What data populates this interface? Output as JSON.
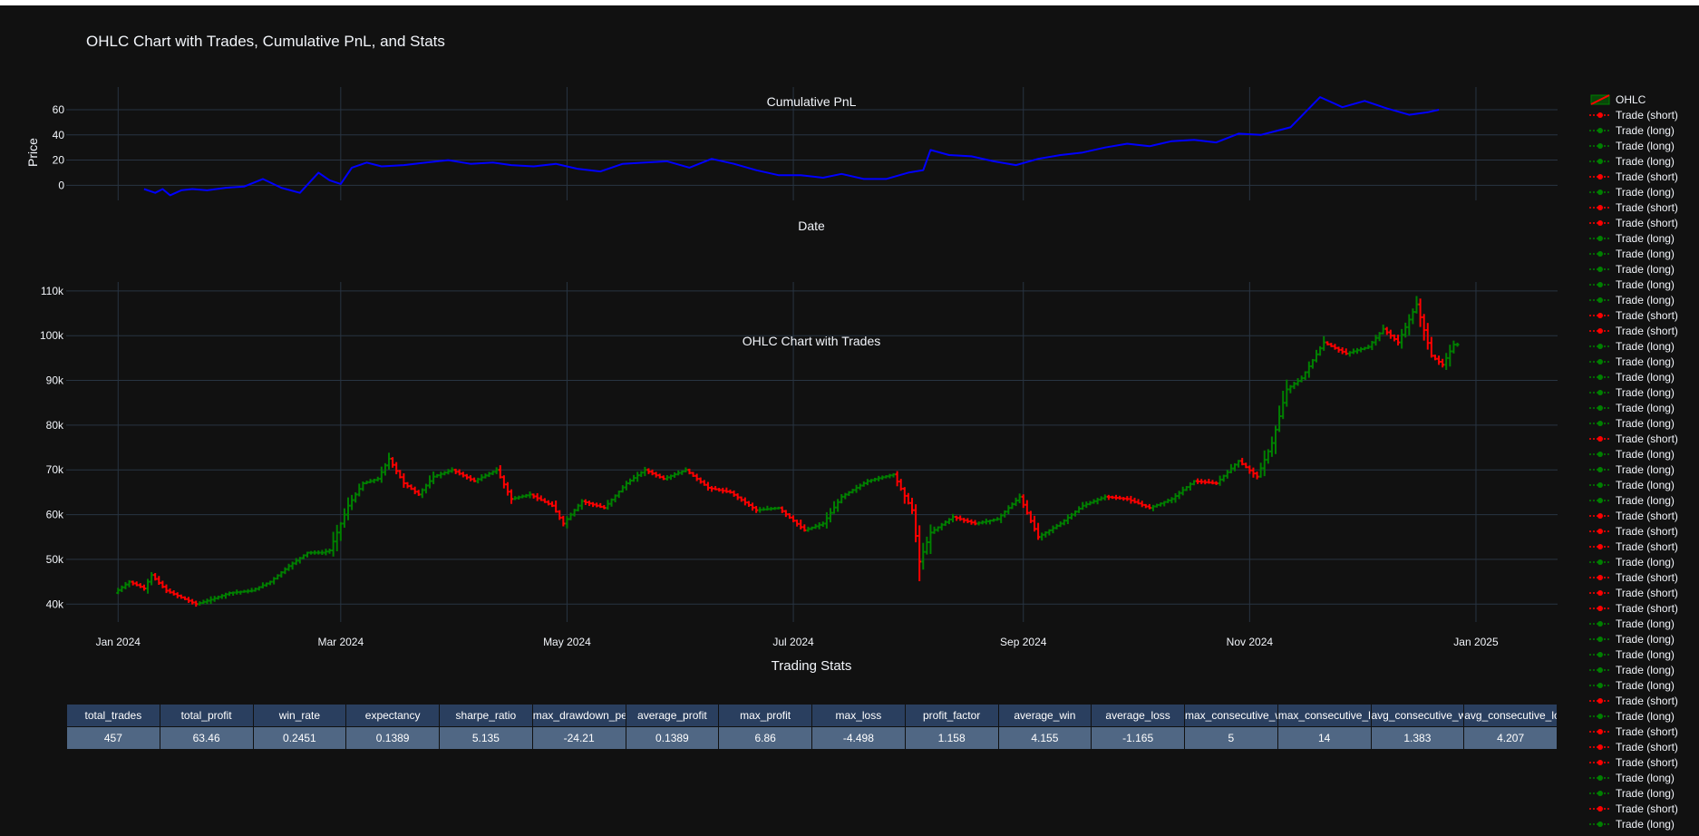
{
  "title": "OHLC Chart with Trades, Cumulative PnL, and Stats",
  "colors": {
    "background": "#111111",
    "grid": "#283442",
    "pnl_line": "#0000ff",
    "increasing": "#008000",
    "decreasing": "#ff0000",
    "header_fill": "#2a3f5f",
    "cell_fill": "#506784",
    "text": "#f2f5fa"
  },
  "chart_data": [
    {
      "type": "line",
      "title": "Cumulative PnL",
      "xlabel": "Date",
      "ylabel": "Price",
      "ylim": [
        -12,
        78
      ],
      "yticks": [
        0,
        20,
        40,
        60
      ],
      "ytick_labels": [
        "0",
        "20",
        "40",
        "60"
      ],
      "grid": true,
      "series": [
        {
          "x": [
            "2024-01-08",
            "2024-01-11",
            "2024-01-13",
            "2024-01-15",
            "2024-01-18",
            "2024-01-21",
            "2024-01-25",
            "2024-01-30",
            "2024-02-04",
            "2024-02-09",
            "2024-02-14",
            "2024-02-19",
            "2024-02-24",
            "2024-02-27",
            "2024-03-01",
            "2024-03-04",
            "2024-03-08",
            "2024-03-12",
            "2024-03-18",
            "2024-03-24",
            "2024-03-30",
            "2024-04-05",
            "2024-04-11",
            "2024-04-16",
            "2024-04-22",
            "2024-04-28",
            "2024-05-04",
            "2024-05-10",
            "2024-05-16",
            "2024-05-22",
            "2024-05-28",
            "2024-06-03",
            "2024-06-09",
            "2024-06-15",
            "2024-06-21",
            "2024-06-27",
            "2024-07-03",
            "2024-07-09",
            "2024-07-14",
            "2024-07-20",
            "2024-07-26",
            "2024-08-01",
            "2024-08-05",
            "2024-08-07",
            "2024-08-12",
            "2024-08-18",
            "2024-08-24",
            "2024-08-30",
            "2024-09-05",
            "2024-09-11",
            "2024-09-17",
            "2024-09-23",
            "2024-09-29",
            "2024-10-05",
            "2024-10-11",
            "2024-10-17",
            "2024-10-23",
            "2024-10-29",
            "2024-11-04",
            "2024-11-08",
            "2024-11-12",
            "2024-11-16",
            "2024-11-20",
            "2024-11-26",
            "2024-12-02",
            "2024-12-08",
            "2024-12-14",
            "2024-12-19",
            "2024-12-22"
          ],
          "y": [
            -3,
            -6,
            -3,
            -8,
            -4,
            -3,
            -4,
            -2,
            -1,
            5,
            -2,
            -6,
            10,
            4,
            1,
            14,
            18,
            15,
            16,
            18,
            20,
            17,
            18,
            16,
            15,
            17,
            13,
            11,
            17,
            18,
            19,
            14,
            21,
            17,
            12,
            8,
            8,
            6,
            9,
            5,
            5,
            10,
            12,
            28,
            24,
            23,
            19,
            16,
            21,
            24,
            26,
            30,
            33,
            31,
            35,
            36,
            34,
            41,
            40,
            43,
            46,
            58,
            70,
            62,
            67,
            61,
            56,
            58,
            60
          ]
        }
      ]
    },
    {
      "type": "ohlc",
      "title": "OHLC Chart with Trades",
      "ylim": [
        36000,
        112000
      ],
      "yticks": [
        40000,
        50000,
        60000,
        70000,
        80000,
        90000,
        100000,
        110000
      ],
      "ytick_labels": [
        "40k",
        "50k",
        "60k",
        "70k",
        "80k",
        "90k",
        "100k",
        "110k"
      ],
      "x_range": [
        "2023-12-18",
        "2025-01-23"
      ],
      "xticks": [
        "2024-01-01",
        "2024-03-01",
        "2024-05-01",
        "2024-07-01",
        "2024-09-01",
        "2024-11-01",
        "2025-01-01"
      ],
      "xtick_labels": [
        "Jan 2024",
        "Mar 2024",
        "May 2024",
        "Jul 2024",
        "Sep 2024",
        "Nov 2024",
        "Jan 2025"
      ],
      "grid": true,
      "price_path": {
        "dates": [
          "2024-01-01",
          "2024-01-05",
          "2024-01-09",
          "2024-01-11",
          "2024-01-15",
          "2024-01-19",
          "2024-01-23",
          "2024-01-27",
          "2024-02-01",
          "2024-02-07",
          "2024-02-12",
          "2024-02-17",
          "2024-02-22",
          "2024-02-26",
          "2024-02-28",
          "2024-03-04",
          "2024-03-08",
          "2024-03-12",
          "2024-03-15",
          "2024-03-19",
          "2024-03-23",
          "2024-03-27",
          "2024-04-01",
          "2024-04-07",
          "2024-04-13",
          "2024-04-17",
          "2024-04-22",
          "2024-04-28",
          "2024-05-01",
          "2024-05-06",
          "2024-05-12",
          "2024-05-18",
          "2024-05-23",
          "2024-05-28",
          "2024-06-03",
          "2024-06-09",
          "2024-06-15",
          "2024-06-22",
          "2024-06-28",
          "2024-07-05",
          "2024-07-10",
          "2024-07-15",
          "2024-07-22",
          "2024-07-29",
          "2024-08-03",
          "2024-08-05",
          "2024-08-08",
          "2024-08-14",
          "2024-08-20",
          "2024-08-26",
          "2024-09-01",
          "2024-09-06",
          "2024-09-12",
          "2024-09-18",
          "2024-09-24",
          "2024-09-30",
          "2024-10-06",
          "2024-10-12",
          "2024-10-18",
          "2024-10-24",
          "2024-10-30",
          "2024-11-04",
          "2024-11-08",
          "2024-11-12",
          "2024-11-16",
          "2024-11-22",
          "2024-11-28",
          "2024-12-04",
          "2024-12-08",
          "2024-12-12",
          "2024-12-17",
          "2024-12-21",
          "2024-12-24",
          "2024-12-27"
        ],
        "values": [
          42500,
          45000,
          43500,
          46500,
          43000,
          41500,
          40000,
          41000,
          42500,
          43000,
          45000,
          48500,
          51500,
          51500,
          52000,
          62000,
          67000,
          68000,
          72500,
          67000,
          64500,
          68500,
          70000,
          67500,
          70000,
          63500,
          64500,
          62000,
          58000,
          63000,
          61500,
          67000,
          70000,
          68000,
          70000,
          66000,
          65000,
          61000,
          61500,
          56500,
          58000,
          64000,
          67500,
          69000,
          61000,
          49500,
          56000,
          59500,
          58000,
          59000,
          64000,
          55000,
          58000,
          62000,
          64000,
          63500,
          61500,
          63500,
          67500,
          67000,
          72000,
          68500,
          76000,
          88000,
          90500,
          98500,
          96000,
          97500,
          101500,
          98500,
          107000,
          95500,
          93500,
          98000
        ]
      }
    }
  ],
  "stats": {
    "title": "Trading Stats",
    "headers": [
      "total_trades",
      "total_profit",
      "win_rate",
      "expectancy",
      "sharpe_ratio",
      "max_drawdown_percent",
      "average_profit",
      "max_profit",
      "max_loss",
      "profit_factor",
      "average_win",
      "average_loss",
      "max_consecutive_wins",
      "max_consecutive_losses",
      "avg_consecutive_wins",
      "avg_consecutive_losses"
    ],
    "values": [
      "457",
      "63.46",
      "0.2451",
      "0.1389",
      "5.135",
      "-24.21",
      "0.1389",
      "6.86",
      "-4.498",
      "1.158",
      "4.155",
      "-1.165",
      "5",
      "14",
      "1.383",
      "4.207"
    ]
  },
  "legend": {
    "ohlc_label": "OHLC",
    "short_label": "Trade (short)",
    "long_label": "Trade (long)",
    "entries": [
      "OHLC",
      "short",
      "long",
      "long",
      "long",
      "short",
      "long",
      "short",
      "short",
      "long",
      "long",
      "long",
      "long",
      "long",
      "short",
      "short",
      "long",
      "long",
      "long",
      "long",
      "long",
      "long",
      "short",
      "long",
      "long",
      "long",
      "long",
      "short",
      "short",
      "short",
      "long",
      "short",
      "short",
      "short",
      "long",
      "long",
      "long",
      "long",
      "long",
      "short",
      "long",
      "short",
      "short",
      "short",
      "long",
      "long",
      "short",
      "long"
    ]
  }
}
